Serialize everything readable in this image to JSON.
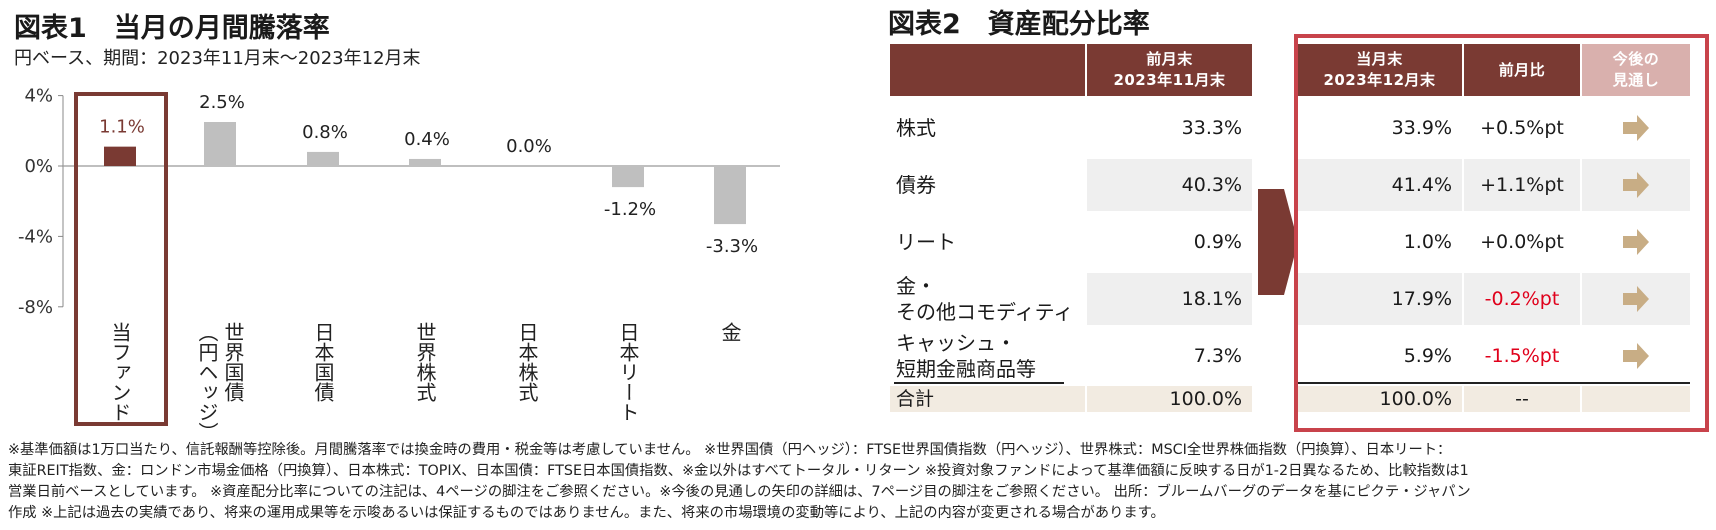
{
  "figure1": {
    "title": "図表1　当月の月間騰落率",
    "subtitle": "円ベース、期間：2023年11月末～2023年12月末"
  },
  "chart_data": {
    "type": "bar",
    "categories": [
      "当ファンド",
      "世界国債（円ヘッジ）",
      "日本国債",
      "世界株式",
      "日本株式",
      "日本リート",
      "金"
    ],
    "category_lines": [
      [
        "当ファンド"
      ],
      [
        "世界国債",
        "（円ヘッジ）"
      ],
      [
        "日本国債"
      ],
      [
        "世界株式"
      ],
      [
        "日本株式"
      ],
      [
        "日本リート"
      ],
      [
        "金"
      ]
    ],
    "values": [
      1.1,
      2.5,
      0.8,
      0.4,
      0.0,
      -1.2,
      -3.3
    ],
    "value_labels": [
      "1.1%",
      "2.5%",
      "0.8%",
      "0.4%",
      "0.0%",
      "-1.2%",
      "-3.3%"
    ],
    "yticks": [
      4,
      0,
      -4,
      -8
    ],
    "ytick_labels": [
      "4%",
      "0%",
      "-4%",
      "-8%"
    ],
    "ylim": [
      -8,
      4
    ],
    "highlight_index": 0,
    "colors": {
      "highlight": "#7a3a33",
      "default": "#bfbfbf",
      "highlight_label": "#7a3a33"
    }
  },
  "figure2": {
    "title": "図表2　資産配分比率",
    "headers": {
      "prev_line1": "前月末",
      "prev_line2": "2023年11月末",
      "curr_line1": "当月末",
      "curr_line2": "2023年12月末",
      "change": "前月比",
      "outlook_line1": "今後の",
      "outlook_line2": "見通し"
    },
    "rows": [
      {
        "label1": "株式",
        "label2": "",
        "prev": "33.3%",
        "curr": "33.9%",
        "change": "+0.5%pt",
        "negative": false,
        "outlook": "right-arrow-icon"
      },
      {
        "label1": "債券",
        "label2": "",
        "prev": "40.3%",
        "curr": "41.4%",
        "change": "+1.1%pt",
        "negative": false,
        "outlook": "right-arrow-icon"
      },
      {
        "label1": "リート",
        "label2": "",
        "prev": "0.9%",
        "curr": "1.0%",
        "change": "+0.0%pt",
        "negative": false,
        "outlook": "right-arrow-icon"
      },
      {
        "label1": "金・",
        "label2": "その他コモディティ",
        "prev": "18.1%",
        "curr": "17.9%",
        "change": "-0.2%pt",
        "negative": true,
        "outlook": "right-arrow-icon"
      },
      {
        "label1": "キャッシュ・",
        "label2": "短期金融商品等",
        "prev": "7.3%",
        "curr": "5.9%",
        "change": "-1.5%pt",
        "negative": true,
        "outlook": "right-arrow-icon"
      }
    ],
    "total": {
      "label": "合計",
      "prev": "100.0%",
      "curr": "100.0%",
      "change": "--"
    },
    "colors": {
      "header": "#7a3a33",
      "header_light": "#d9b0ad",
      "negative": "#e0001b",
      "arrow": "#c8ad85",
      "box": "#c8434b"
    }
  },
  "footnote": {
    "lines": [
      "※基準価額は1万口当たり、信託報酬等控除後。月間騰落率では換金時の費用・税金等は考慮していません。 ※世界国債（円ヘッジ）：FTSE世界国債指数（円ヘッジ）、世界株式：MSCI全世界株価指数（円換算）、日本リート：",
      "東証REIT指数、金：ロンドン市場金価格（円換算）、日本株式：TOPIX、日本国債：FTSE日本国債指数、※金以外はすべてトータル・リターン ※投資対象ファンドによって基準価額に反映する日が1-2日異なるため、比較指数は1",
      "営業日前ベースとしています。 ※資産配分比率についての注記は、4ページの脚注をご参照ください。※今後の見通しの矢印の詳細は、7ページ目の脚注をご参照ください。 出所：ブルームバーグのデータを基にピクテ・ジャパン",
      "作成 ※上記は過去の実績であり、将来の運用成果等を示唆あるいは保証するものではありません。また、将来の市場環境の変動等により、上記の内容が変更される場合があります。"
    ]
  }
}
